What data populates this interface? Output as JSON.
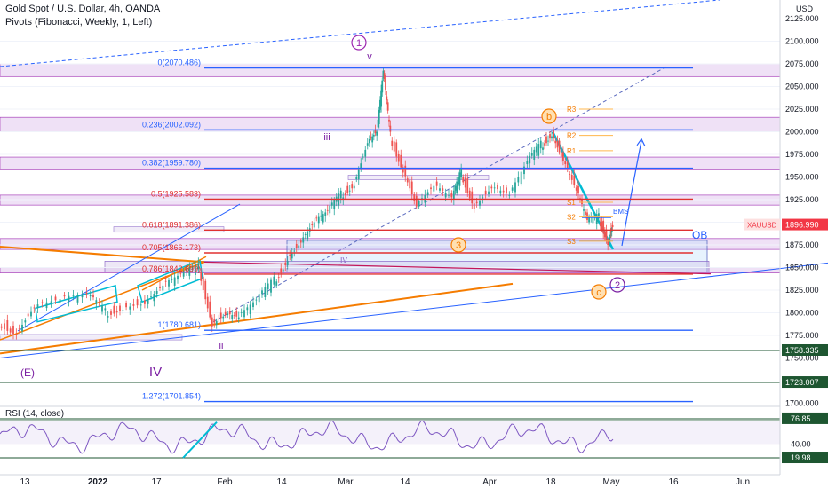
{
  "header": {
    "symbol_title": "Gold Spot / U.S. Dollar, 4h, OANDA",
    "indicator_title": "Pivots (Fibonacci, Weekly, 1, Left)",
    "currency": "USD"
  },
  "price_axis": {
    "ticks": [
      "2125.000",
      "2100.000",
      "2075.000",
      "2050.000",
      "2025.000",
      "2000.000",
      "1975.000",
      "1950.000",
      "1925.000",
      "1900.000",
      "1875.000",
      "1850.000",
      "1825.000",
      "1800.000",
      "1775.000",
      "1750.000",
      "1700.000"
    ]
  },
  "price_tags": [
    {
      "label": "XAUUSD",
      "value": "1896.990",
      "color": "#f23645"
    },
    {
      "label": "",
      "value": "1758.335",
      "color": "#1e5631"
    },
    {
      "label": "",
      "value": "1723.007",
      "color": "#1e5631"
    }
  ],
  "time_axis": {
    "labels": [
      "13",
      "2022",
      "17",
      "Feb",
      "14",
      "Mar",
      "14",
      "Apr",
      "18",
      "May",
      "16",
      "Jun"
    ]
  },
  "fib_levels": [
    {
      "label": "0(2070.486)",
      "price": 2070.486,
      "color": "#2962ff"
    },
    {
      "label": "0.236(2002.092)",
      "price": 2002.092,
      "color": "#2962ff"
    },
    {
      "label": "0.382(1959.780)",
      "price": 1959.78,
      "color": "#2962ff"
    },
    {
      "label": "0.5(1925.583)",
      "price": 1925.583,
      "color": "#e03131"
    },
    {
      "label": "0.618(1891.386)",
      "price": 1891.386,
      "color": "#e03131"
    },
    {
      "label": "0.705(1866.173)",
      "price": 1866.173,
      "color": "#e03131"
    },
    {
      "label": "0.786(1842.699)",
      "price": 1842.699,
      "color": "#e03131"
    },
    {
      "label": "1(1780.681)",
      "price": 1780.681,
      "color": "#2962ff"
    },
    {
      "label": "1.272(1701.854)",
      "price": 1701.854,
      "color": "#2962ff"
    }
  ],
  "pivot_labels": [
    "R3",
    "R2",
    "R1",
    "S1",
    "S2",
    "S3"
  ],
  "wave_labels": {
    "circle1": "1",
    "circleb": "b",
    "circle3": "3",
    "circlec": "c",
    "circle2": "2",
    "v": "v",
    "iii": "iii",
    "iv": "iv",
    "ii": "ii",
    "IV": "IV",
    "E": "(E)"
  },
  "annotations": {
    "bms": "BMS",
    "ob": "OB"
  },
  "rsi": {
    "title": "RSI (14, close)",
    "ticks": [
      "74.00",
      "40.00"
    ],
    "tags": [
      {
        "value": "76.85"
      },
      {
        "value": "19.98"
      }
    ]
  },
  "chart_data": {
    "type": "line",
    "title": "Gold Spot / U.S. Dollar, 4h, OANDA",
    "ylim": [
      1690,
      2135
    ],
    "x": [
      "Dec 13",
      "2022",
      "Jan 17",
      "Feb",
      "Feb 14",
      "Mar",
      "Mar 14",
      "Apr",
      "Apr 18",
      "May"
    ],
    "series": [
      {
        "name": "XAUUSD",
        "values": [
          1790,
          1805,
          1815,
          1790,
          1855,
          1935,
          1990,
          1925,
          1985,
          1897
        ]
      }
    ]
  },
  "colors": {
    "bull": "#26a69a",
    "bear": "#ef5350",
    "zone": "#e1c9ef",
    "zone_border": "#9c27b0",
    "axis_text": "#131722",
    "grid": "#f0f3fa",
    "orange": "#f57c00",
    "teal": "#00bcd4"
  }
}
